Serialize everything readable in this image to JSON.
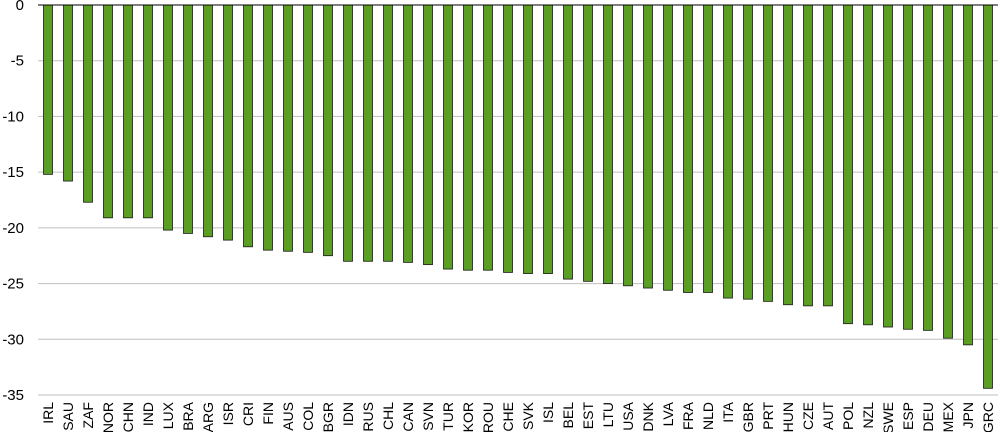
{
  "chart_data": {
    "type": "bar",
    "categories": [
      "IRL",
      "SAU",
      "ZAF",
      "NOR",
      "CHN",
      "IND",
      "LUX",
      "BRA",
      "ARG",
      "ISR",
      "CRI",
      "FIN",
      "AUS",
      "COL",
      "BGR",
      "IDN",
      "RUS",
      "CHL",
      "CAN",
      "SVN",
      "TUR",
      "KOR",
      "ROU",
      "CHE",
      "SVK",
      "ISL",
      "BEL",
      "EST",
      "LTU",
      "USA",
      "DNK",
      "LVA",
      "FRA",
      "NLD",
      "ITA",
      "GBR",
      "PRT",
      "HUN",
      "CZE",
      "AUT",
      "POL",
      "NZL",
      "SWE",
      "ESP",
      "DEU",
      "MEX",
      "JPN",
      "GRC"
    ],
    "values": [
      -15.2,
      -15.8,
      -17.7,
      -19.1,
      -19.1,
      -19.1,
      -20.2,
      -20.5,
      -20.8,
      -21.1,
      -21.7,
      -22.0,
      -22.1,
      -22.2,
      -22.5,
      -23.0,
      -23.0,
      -23.0,
      -23.1,
      -23.3,
      -23.7,
      -23.8,
      -23.8,
      -24.0,
      -24.1,
      -24.1,
      -24.6,
      -24.8,
      -25.0,
      -25.2,
      -25.4,
      -25.6,
      -25.8,
      -25.8,
      -26.3,
      -26.4,
      -26.6,
      -26.9,
      -27.0,
      -27.0,
      -28.6,
      -28.7,
      -28.9,
      -29.1,
      -29.2,
      -29.9,
      -30.5,
      -34.4
    ],
    "yticks": [
      "0",
      "-5",
      "-10",
      "-15",
      "-20",
      "-25",
      "-30",
      "-35"
    ],
    "ylim": [
      -35,
      0
    ],
    "grid": true,
    "title": "",
    "xlabel": "",
    "ylabel": "",
    "colors": {
      "bar_fill": "#5a9e24",
      "bar_stroke": "#1a1a1a",
      "grid": "#bfbfbf",
      "axis": "#000000"
    }
  }
}
